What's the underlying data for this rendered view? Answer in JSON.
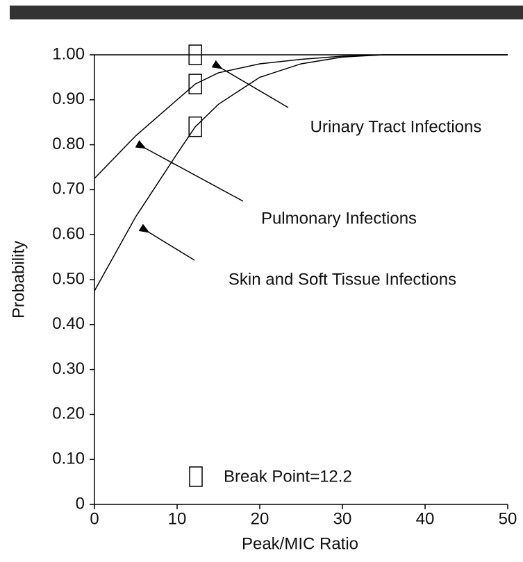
{
  "chart_data": {
    "type": "line",
    "x_label": "Peak/MIC Ratio",
    "y_label": "Probability",
    "xlim": [
      0,
      50
    ],
    "xticks": [
      0,
      10,
      20,
      30,
      40,
      50
    ],
    "ylim": [
      0,
      1
    ],
    "yticks": [
      0,
      {
        "value": 0.1,
        "label": "0.10"
      },
      {
        "value": 0.2,
        "label": "0.20"
      },
      {
        "value": 0.3,
        "label": "0.30"
      },
      {
        "value": 0.4,
        "label": "0.40"
      },
      {
        "value": 0.5,
        "label": "0.50"
      },
      {
        "value": 0.6,
        "label": "0.60"
      },
      {
        "value": 0.7,
        "label": "0.70"
      },
      {
        "value": 0.8,
        "label": "0.80"
      },
      {
        "value": 0.9,
        "label": "0.90"
      },
      {
        "value": 1,
        "label": "1.00"
      }
    ],
    "series": [
      {
        "name": "Urinary Tract Infections",
        "color": "#000000",
        "x": [
          0,
          50
        ],
        "values": [
          1,
          1
        ]
      },
      {
        "name": "Pulmonary Infections",
        "color": "#000000",
        "x": [
          0,
          5,
          10,
          12.2,
          15,
          20,
          25,
          30,
          35,
          40,
          50
        ],
        "values": [
          0.725,
          0.82,
          0.9,
          0.935,
          0.96,
          0.98,
          0.99,
          0.997,
          1,
          1,
          1
        ]
      },
      {
        "name": "Skin and Soft Tissue Infections",
        "color": "#000000",
        "x": [
          0,
          5,
          10,
          12.2,
          15,
          20,
          25,
          30,
          35,
          40,
          50
        ],
        "values": [
          0.475,
          0.64,
          0.78,
          0.84,
          0.89,
          0.95,
          0.98,
          0.995,
          1,
          1,
          1
        ]
      }
    ],
    "break_points": {
      "label": "Break Point=12.2",
      "x": [
        12.2,
        12.2,
        12.2
      ],
      "values": [
        1,
        0.935,
        0.84
      ]
    }
  }
}
